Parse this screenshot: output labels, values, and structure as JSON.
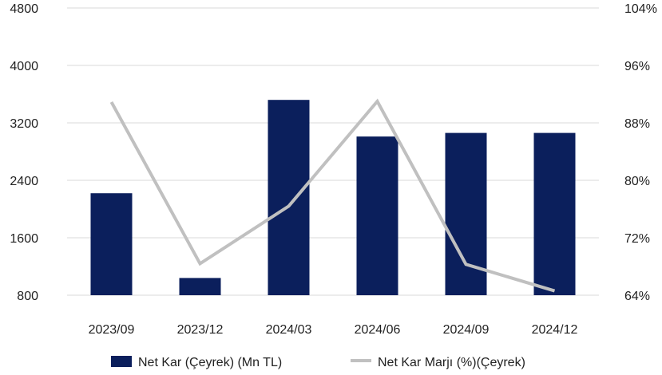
{
  "chart_data": {
    "type": "bar",
    "title": "",
    "xlabel": "",
    "ylabel": "",
    "categories": [
      "2023/09",
      "2023/12",
      "2024/03",
      "2024/06",
      "2024/09",
      "2024/12"
    ],
    "series": [
      {
        "name": "Net Kar (Çeyrek) (Mn TL)",
        "type": "bar",
        "axis": "left",
        "color": "#0b1f5c",
        "values": [
          2220,
          1040,
          3520,
          3010,
          3060,
          3060
        ]
      },
      {
        "name": "Net Kar Marjı (%)(Çeyrek)",
        "type": "line",
        "axis": "right",
        "color": "#c0c0c0",
        "values": [
          90.9,
          68.4,
          76.4,
          91.0,
          68.3,
          64.6
        ]
      }
    ],
    "ylim_left": [
      800,
      4800
    ],
    "yticks_left": [
      "800",
      "1600",
      "2400",
      "3200",
      "4000",
      "4800"
    ],
    "ytick_values_left": [
      800,
      1600,
      2400,
      3200,
      4000,
      4800
    ],
    "ylim_right": [
      64,
      104
    ],
    "yticks_right": [
      "64%",
      "72%",
      "80%",
      "88%",
      "96%",
      "104%"
    ],
    "ytick_values_right": [
      64,
      72,
      80,
      88,
      96,
      104
    ],
    "grid": true,
    "legend": "bottom"
  }
}
